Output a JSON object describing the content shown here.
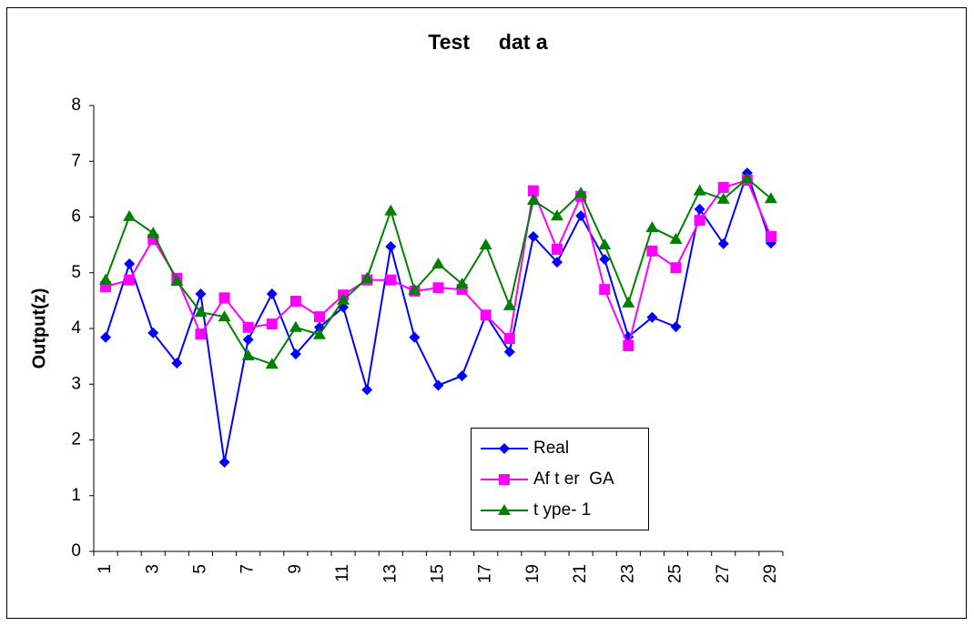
{
  "chart_data": {
    "type": "line",
    "title": "Test     dat a",
    "y_label": "Output(z)",
    "categories": [
      "1",
      null,
      "3",
      null,
      "5",
      null,
      "7",
      null,
      "9",
      null,
      "11",
      null,
      "13",
      null,
      "15",
      null,
      "17",
      null,
      "19",
      null,
      "21",
      null,
      "23",
      null,
      "25",
      null,
      "27",
      null,
      "29"
    ],
    "series": [
      {
        "name": "Real",
        "color": "#0000ff",
        "marker": "diamond",
        "values": [
          3.84,
          5.16,
          3.92,
          3.38,
          4.62,
          1.6,
          3.8,
          4.62,
          3.54,
          4.02,
          4.38,
          2.9,
          5.47,
          3.84,
          2.98,
          3.15,
          4.24,
          3.58,
          5.65,
          5.19,
          6.02,
          5.24,
          3.85,
          4.2,
          4.03,
          6.14,
          5.52,
          6.79,
          5.53
        ]
      },
      {
        "name": "Af t er  GA",
        "color": "#ff00ff",
        "marker": "square",
        "values": [
          4.75,
          4.87,
          5.6,
          4.9,
          3.9,
          4.55,
          4.02,
          4.08,
          4.49,
          4.21,
          4.6,
          4.87,
          4.87,
          4.67,
          4.73,
          4.7,
          4.24,
          3.82,
          6.47,
          5.42,
          6.37,
          4.7,
          3.69,
          5.39,
          5.09,
          5.94,
          6.53,
          6.66,
          5.65
        ]
      },
      {
        "name": "t ype- 1",
        "color": "#008000",
        "marker": "triangle",
        "values": [
          4.87,
          6.01,
          5.71,
          4.85,
          4.29,
          4.21,
          3.51,
          3.36,
          4.02,
          3.89,
          4.51,
          4.9,
          6.11,
          4.69,
          5.16,
          4.8,
          5.5,
          4.41,
          6.3,
          6.02,
          6.43,
          5.5,
          4.46,
          5.81,
          5.6,
          6.47,
          6.32,
          6.69,
          6.33
        ]
      }
    ],
    "ylim": [
      0,
      8
    ],
    "yticks": [
      0,
      1,
      2,
      3,
      4,
      5,
      6,
      7,
      8
    ],
    "grid": false
  }
}
